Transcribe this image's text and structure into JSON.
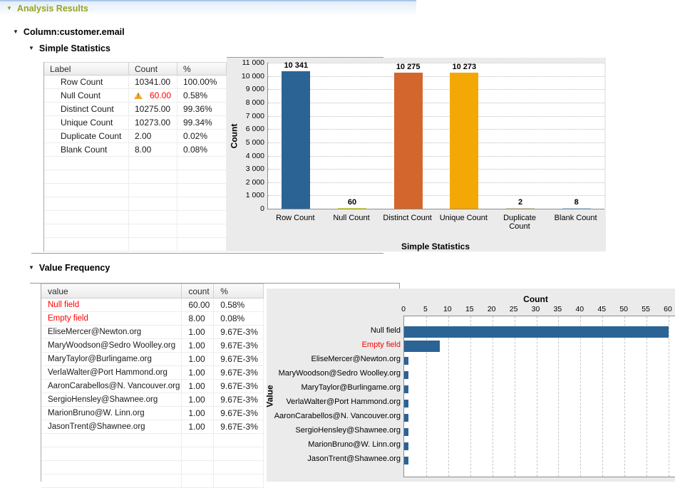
{
  "header": {
    "title": "Analysis Results"
  },
  "icons": {
    "collapse_arrow": "▼",
    "warning_glyph": "!"
  },
  "column_section": {
    "title": "Column:customer.email"
  },
  "simple_stats": {
    "title": "Simple Statistics",
    "table": {
      "columns": [
        "Label",
        "Count",
        "%"
      ],
      "rows": [
        {
          "label": "Row Count",
          "count": "10341.00",
          "pct": "100.00%",
          "warning": false
        },
        {
          "label": "Null Count",
          "count": "60.00",
          "pct": "0.58%",
          "warning": true
        },
        {
          "label": "Distinct Count",
          "count": "10275.00",
          "pct": "99.36%",
          "warning": false
        },
        {
          "label": "Unique Count",
          "count": "10273.00",
          "pct": "99.34%",
          "warning": false
        },
        {
          "label": "Duplicate Count",
          "count": "2.00",
          "pct": "0.02%",
          "warning": false
        },
        {
          "label": "Blank Count",
          "count": "8.00",
          "pct": "0.08%",
          "warning": false
        }
      ],
      "empty_rows": 7
    }
  },
  "value_frequency": {
    "title": "Value Frequency",
    "table": {
      "columns": [
        "value",
        "count",
        "%"
      ],
      "rows": [
        {
          "value": "Null field",
          "count": "60.00",
          "pct": "0.58%",
          "red": true
        },
        {
          "value": "Empty field",
          "count": "8.00",
          "pct": "0.08%",
          "red": true
        },
        {
          "value": "EliseMercer@Newton.org",
          "count": "1.00",
          "pct": "9.67E-3%",
          "red": false
        },
        {
          "value": "MaryWoodson@Sedro Woolley.org",
          "count": "1.00",
          "pct": "9.67E-3%",
          "red": false
        },
        {
          "value": "MaryTaylor@Burlingame.org",
          "count": "1.00",
          "pct": "9.67E-3%",
          "red": false
        },
        {
          "value": "VerlaWalter@Port Hammond.org",
          "count": "1.00",
          "pct": "9.67E-3%",
          "red": false
        },
        {
          "value": "AaronCarabellos@N. Vancouver.org",
          "count": "1.00",
          "pct": "9.67E-3%",
          "red": false
        },
        {
          "value": "SergioHensley@Shawnee.org",
          "count": "1.00",
          "pct": "9.67E-3%",
          "red": false
        },
        {
          "value": "MarionBruno@W. Linn.org",
          "count": "1.00",
          "pct": "9.67E-3%",
          "red": false
        },
        {
          "value": "JasonTrent@Shawnee.org",
          "count": "1.00",
          "pct": "9.67E-3%",
          "red": false
        }
      ],
      "empty_rows": 4
    }
  },
  "chart_data": [
    {
      "type": "bar",
      "title": "",
      "xlabel": "Simple Statistics",
      "ylabel": "Count",
      "categories": [
        "Row Count",
        "Null Count",
        "Distinct Count",
        "Unique Count",
        "Duplicate Count",
        "Blank Count"
      ],
      "values": [
        10341,
        60,
        10275,
        10273,
        2,
        8
      ],
      "value_labels": [
        "10 341",
        "60",
        "10 275",
        "10 273",
        "2",
        "8"
      ],
      "bar_colors": [
        "#2b6395",
        "#d3d831",
        "#d2662c",
        "#f4a805",
        "#d8cdb2",
        "#aecfe5"
      ],
      "ylim": [
        0,
        11000
      ],
      "yticks": [
        0,
        1000,
        2000,
        3000,
        4000,
        5000,
        6000,
        7000,
        8000,
        9000,
        10000,
        11000
      ],
      "ytick_labels": [
        "0",
        "1 000",
        "2 000",
        "3 000",
        "4 000",
        "5 000",
        "6 000",
        "7 000",
        "8 000",
        "9 000",
        "10 000",
        "11 000"
      ],
      "grid": "dotted-horizontal",
      "legend": "none",
      "plot_bg": "#ffffff",
      "outer_bg": "#ebebeb"
    },
    {
      "type": "bar-horizontal",
      "title": "Count",
      "ylabel": "Value",
      "categories": [
        "Null field",
        "Empty field",
        "EliseMercer@Newton.org",
        "MaryWoodson@Sedro Woolley.org",
        "MaryTaylor@Burlingame.org",
        "VerlaWalter@Port Hammond.org",
        "AaronCarabellos@N. Vancouver.org",
        "SergioHensley@Shawnee.org",
        "MarionBruno@W. Linn.org",
        "JasonTrent@Shawnee.org"
      ],
      "category_colors": [
        "#000000",
        "#fe0000",
        "#000000",
        "#000000",
        "#000000",
        "#000000",
        "#000000",
        "#000000",
        "#000000",
        "#000000"
      ],
      "values": [
        60,
        8,
        1,
        1,
        1,
        1,
        1,
        1,
        1,
        1
      ],
      "xlim": [
        0,
        60
      ],
      "xticks": [
        0,
        5,
        10,
        15,
        20,
        25,
        30,
        35,
        40,
        45,
        50,
        55,
        60
      ],
      "bar_color": "#2b6395",
      "grid": "dashed-vertical",
      "legend": "none",
      "plot_bg": "#ffffff",
      "outer_bg": "#ebebeb"
    }
  ],
  "colors": {
    "section_title_olive": "#99a31f",
    "alert_red": "#fe0000",
    "bar_blue": "#2b6395"
  }
}
